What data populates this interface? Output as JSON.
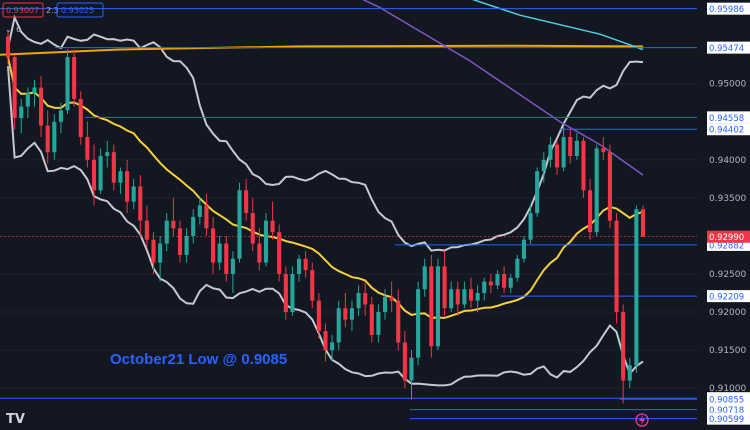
{
  "header": {
    "sell_price": "0.93007",
    "spread": "2.3",
    "buy_price": "0.93025",
    "indicator_count": "6"
  },
  "annotation": "October21 Low @ 0.9085",
  "logo_text": "TV",
  "colors": {
    "background": "#131722",
    "bull": "#26a69a",
    "bear": "#f23645",
    "bollinger": "#c7c9d1",
    "ma_yellow": "#f6d03b",
    "ma_orange": "#f0a500",
    "ma_purple": "#7e57c2",
    "ma_teal": "#4dd0e1",
    "level_line": "#2962ff",
    "current_price_label": "#f23645"
  },
  "chart_data": {
    "type": "candlestick",
    "title": "",
    "ylim": [
      0.9045,
      0.961
    ],
    "y_ticks": [
      "0.95000",
      "0.94000",
      "0.93500",
      "0.92500",
      "0.92000",
      "0.91500",
      "0.91000"
    ],
    "price_levels": [
      "0.95986",
      "0.95474",
      "0.94558",
      "0.94402",
      "0.92882",
      "0.92209",
      "0.90868",
      "0.90855",
      "0.90718",
      "0.90599"
    ],
    "current_price": "0.92990",
    "candles": [
      [
        0.9562,
        0.957,
        0.9525,
        0.9535
      ],
      [
        0.9535,
        0.9538,
        0.944,
        0.9455
      ],
      [
        0.9455,
        0.948,
        0.9435,
        0.947
      ],
      [
        0.947,
        0.9495,
        0.9455,
        0.9488
      ],
      [
        0.9488,
        0.9505,
        0.947,
        0.9495
      ],
      [
        0.9495,
        0.951,
        0.943,
        0.9445
      ],
      [
        0.9445,
        0.9465,
        0.9395,
        0.941
      ],
      [
        0.941,
        0.946,
        0.94,
        0.945
      ],
      [
        0.945,
        0.9475,
        0.9435,
        0.9465
      ],
      [
        0.9465,
        0.9545,
        0.946,
        0.9535
      ],
      [
        0.9535,
        0.9545,
        0.947,
        0.948
      ],
      [
        0.948,
        0.949,
        0.942,
        0.943
      ],
      [
        0.943,
        0.945,
        0.939,
        0.94
      ],
      [
        0.94,
        0.942,
        0.934,
        0.936
      ],
      [
        0.936,
        0.9415,
        0.9355,
        0.9405
      ],
      [
        0.9405,
        0.9425,
        0.939,
        0.941
      ],
      [
        0.941,
        0.942,
        0.936,
        0.937
      ],
      [
        0.937,
        0.939,
        0.9355,
        0.9385
      ],
      [
        0.9385,
        0.94,
        0.933,
        0.9345
      ],
      [
        0.9345,
        0.9375,
        0.9335,
        0.9365
      ],
      [
        0.9365,
        0.938,
        0.93,
        0.932
      ],
      [
        0.932,
        0.934,
        0.9285,
        0.9295
      ],
      [
        0.9295,
        0.9305,
        0.925,
        0.9265
      ],
      [
        0.9265,
        0.93,
        0.924,
        0.929
      ],
      [
        0.929,
        0.933,
        0.928,
        0.932
      ],
      [
        0.932,
        0.935,
        0.93,
        0.931
      ],
      [
        0.931,
        0.932,
        0.9265,
        0.9275
      ],
      [
        0.9275,
        0.931,
        0.9265,
        0.93
      ],
      [
        0.93,
        0.9335,
        0.929,
        0.9325
      ],
      [
        0.9325,
        0.935,
        0.9315,
        0.934
      ],
      [
        0.934,
        0.9355,
        0.93,
        0.931
      ],
      [
        0.931,
        0.9325,
        0.925,
        0.9265
      ],
      [
        0.9265,
        0.93,
        0.9255,
        0.929
      ],
      [
        0.929,
        0.93,
        0.924,
        0.925
      ],
      [
        0.925,
        0.928,
        0.9225,
        0.927
      ],
      [
        0.927,
        0.937,
        0.9265,
        0.936
      ],
      [
        0.936,
        0.9375,
        0.932,
        0.933
      ],
      [
        0.933,
        0.935,
        0.928,
        0.929
      ],
      [
        0.929,
        0.931,
        0.9255,
        0.9265
      ],
      [
        0.9265,
        0.933,
        0.926,
        0.932
      ],
      [
        0.932,
        0.9345,
        0.9295,
        0.9305
      ],
      [
        0.9305,
        0.9315,
        0.924,
        0.925
      ],
      [
        0.925,
        0.926,
        0.919,
        0.92
      ],
      [
        0.92,
        0.926,
        0.9195,
        0.925
      ],
      [
        0.925,
        0.9275,
        0.924,
        0.927
      ],
      [
        0.927,
        0.928,
        0.9245,
        0.9255
      ],
      [
        0.9255,
        0.9265,
        0.9205,
        0.9215
      ],
      [
        0.9215,
        0.9225,
        0.9165,
        0.9175
      ],
      [
        0.9175,
        0.9185,
        0.9135,
        0.915
      ],
      [
        0.915,
        0.917,
        0.9135,
        0.916
      ],
      [
        0.916,
        0.9215,
        0.915,
        0.9205
      ],
      [
        0.9205,
        0.9225,
        0.918,
        0.919
      ],
      [
        0.919,
        0.9215,
        0.9175,
        0.9205
      ],
      [
        0.9205,
        0.9235,
        0.9195,
        0.9225
      ],
      [
        0.9225,
        0.924,
        0.9195,
        0.921
      ],
      [
        0.921,
        0.922,
        0.916,
        0.917
      ],
      [
        0.917,
        0.921,
        0.916,
        0.92
      ],
      [
        0.92,
        0.923,
        0.919,
        0.922
      ],
      [
        0.922,
        0.924,
        0.92,
        0.9215
      ],
      [
        0.9215,
        0.923,
        0.915,
        0.916
      ],
      [
        0.916,
        0.9175,
        0.91,
        0.911
      ],
      [
        0.911,
        0.915,
        0.9085,
        0.914
      ],
      [
        0.914,
        0.924,
        0.913,
        0.923
      ],
      [
        0.923,
        0.927,
        0.922,
        0.926
      ],
      [
        0.926,
        0.9275,
        0.914,
        0.9155
      ],
      [
        0.9155,
        0.927,
        0.915,
        0.926
      ],
      [
        0.926,
        0.928,
        0.9195,
        0.9205
      ],
      [
        0.9205,
        0.924,
        0.92,
        0.923
      ],
      [
        0.923,
        0.924,
        0.9195,
        0.921
      ],
      [
        0.921,
        0.924,
        0.9205,
        0.923
      ],
      [
        0.923,
        0.9245,
        0.9205,
        0.9215
      ],
      [
        0.9215,
        0.9235,
        0.92,
        0.9225
      ],
      [
        0.9225,
        0.9245,
        0.9215,
        0.924
      ],
      [
        0.924,
        0.925,
        0.9225,
        0.9235
      ],
      [
        0.9235,
        0.9255,
        0.923,
        0.925
      ],
      [
        0.925,
        0.926,
        0.9225,
        0.9232
      ],
      [
        0.9232,
        0.925,
        0.9225,
        0.9245
      ],
      [
        0.9245,
        0.9275,
        0.924,
        0.927
      ],
      [
        0.927,
        0.93,
        0.9265,
        0.9295
      ],
      [
        0.9295,
        0.934,
        0.929,
        0.933
      ],
      [
        0.933,
        0.939,
        0.9325,
        0.9385
      ],
      [
        0.9385,
        0.941,
        0.937,
        0.94
      ],
      [
        0.94,
        0.943,
        0.939,
        0.942
      ],
      [
        0.942,
        0.9425,
        0.938,
        0.939
      ],
      [
        0.939,
        0.9445,
        0.9385,
        0.943
      ],
      [
        0.943,
        0.944,
        0.9395,
        0.9405
      ],
      [
        0.9405,
        0.9435,
        0.94,
        0.9425
      ],
      [
        0.9425,
        0.943,
        0.935,
        0.936
      ],
      [
        0.936,
        0.9375,
        0.9295,
        0.9305
      ],
      [
        0.9305,
        0.942,
        0.93,
        0.9415
      ],
      [
        0.9415,
        0.943,
        0.94,
        0.941
      ],
      [
        0.941,
        0.942,
        0.931,
        0.932
      ],
      [
        0.932,
        0.933,
        0.9185,
        0.92
      ],
      [
        0.92,
        0.921,
        0.908,
        0.911
      ],
      [
        0.911,
        0.914,
        0.91,
        0.913
      ],
      [
        0.913,
        0.934,
        0.912,
        0.9335
      ],
      [
        0.9335,
        0.934,
        0.93,
        0.9299
      ]
    ]
  }
}
